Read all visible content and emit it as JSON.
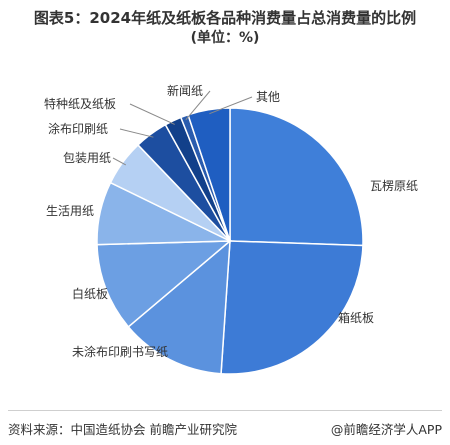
{
  "title": {
    "line1": "图表5：2024年纸及纸板各品种消费量占总消费量的比例",
    "line2": "(单位：%)"
  },
  "chart_data": {
    "type": "pie",
    "title": "图表5：2024年纸及纸板各品种消费量占总消费量的比例",
    "subtitle": "(单位：%)",
    "labels": [
      "瓦楞原纸",
      "箱纸板",
      "未涂布印刷书写纸",
      "白纸板",
      "生活用纸",
      "包装用纸",
      "涂布印刷纸",
      "特种纸及纸板",
      "新闻纸",
      "其他"
    ],
    "values": [
      25.0,
      25.0,
      12.5,
      10.5,
      7.5,
      5.5,
      4.0,
      2.0,
      0.9,
      5.0
    ],
    "colors": [
      "#3f7fd9",
      "#3d7bd6",
      "#5b92de",
      "#6c9fe3",
      "#8ab4ea",
      "#b5d0f3",
      "#1d4ea0",
      "#12408a",
      "#2a5cae",
      "#1f5ec1"
    ]
  },
  "footer": {
    "source": "资料来源：中国造纸协会 前瞻产业研究院",
    "brand": "@前瞻经济学人APP"
  }
}
